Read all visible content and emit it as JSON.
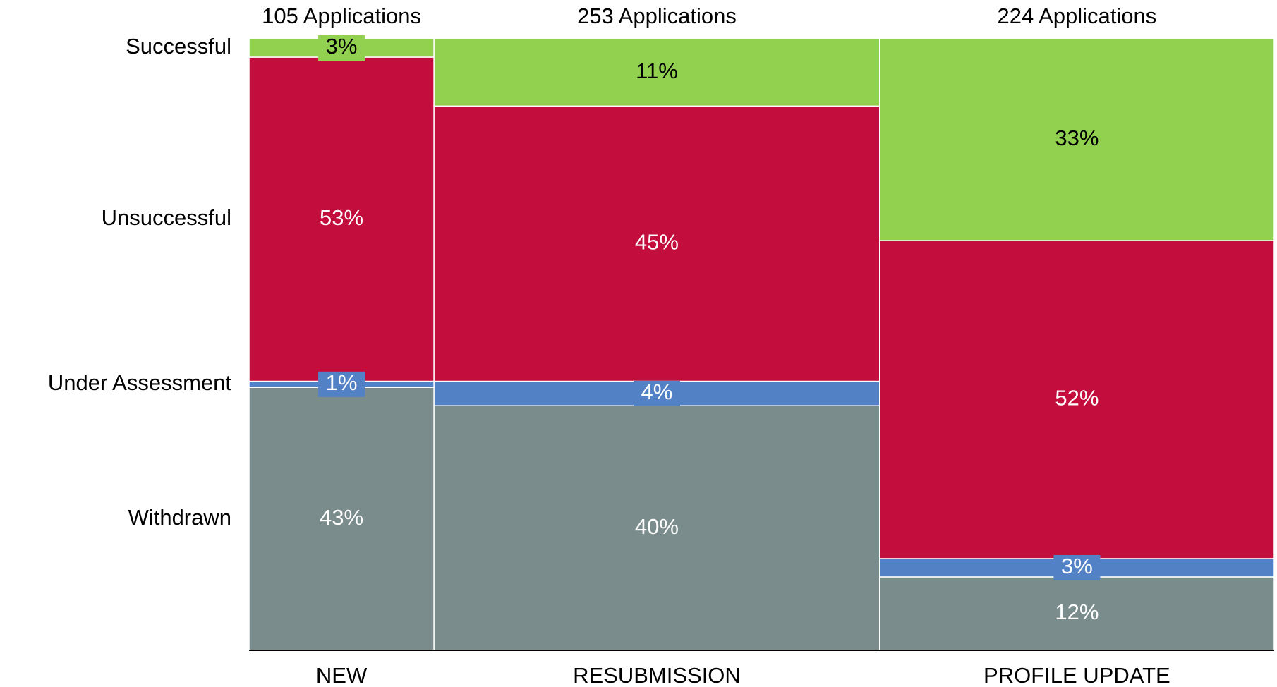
{
  "chart_data": {
    "type": "mosaic",
    "categories": [
      "NEW",
      "RESUBMISSION",
      "PROFILE UPDATE"
    ],
    "column_totals": [
      105,
      253,
      224
    ],
    "column_total_labels": [
      "105 Applications",
      "253 Applications",
      "224 Applications"
    ],
    "series": [
      {
        "name": "Withdrawn",
        "color": "#7b8c8c",
        "label_color": "#ffffff",
        "values": [
          43,
          40,
          12
        ],
        "value_labels": [
          "43%",
          "40%",
          "12%"
        ]
      },
      {
        "name": "Under Assessment",
        "color": "#5381c6",
        "label_color": "#ffffff",
        "values": [
          1,
          4,
          3
        ],
        "value_labels": [
          "1%",
          "4%",
          "3%"
        ]
      },
      {
        "name": "Unsuccessful",
        "color": "#c30d3c",
        "label_color": "#ffffff",
        "values": [
          53,
          45,
          52
        ],
        "value_labels": [
          "53%",
          "45%",
          "52%"
        ]
      },
      {
        "name": "Successful",
        "color": "#92d050",
        "label_color": "#000000",
        "values": [
          3,
          11,
          33
        ],
        "value_labels": [
          "3%",
          "11%",
          "33%"
        ]
      }
    ]
  }
}
